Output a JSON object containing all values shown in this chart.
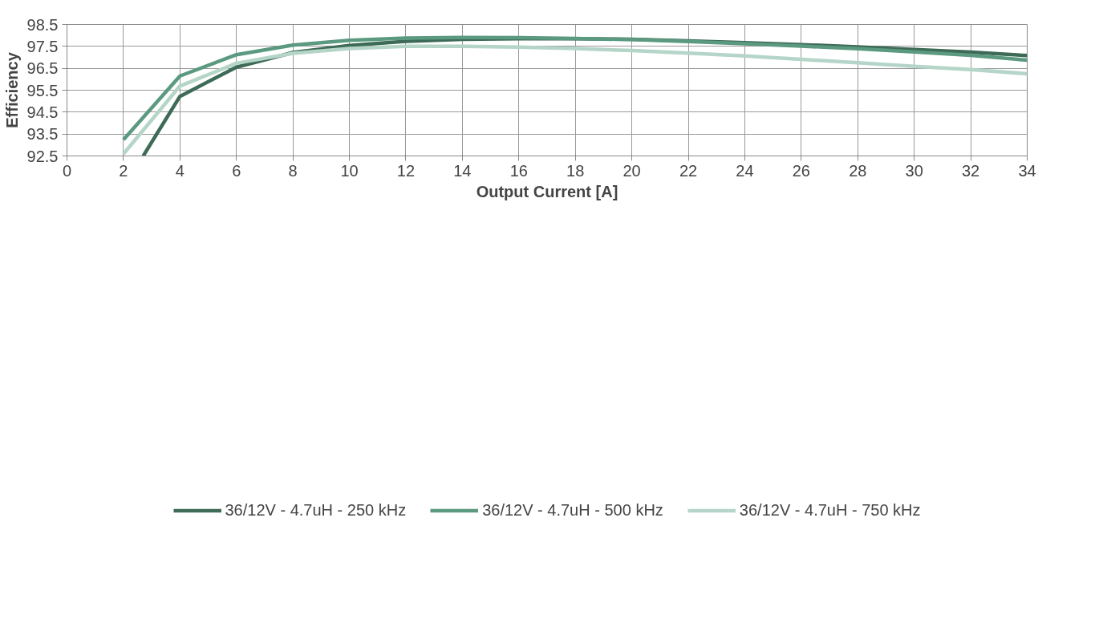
{
  "chart_data": {
    "type": "line",
    "xlabel": "Output Current [A]",
    "ylabel": "Efficiency",
    "xlim": [
      0,
      34
    ],
    "xticks": [
      0,
      2,
      4,
      6,
      8,
      10,
      12,
      14,
      16,
      18,
      20,
      22,
      24,
      26,
      28,
      30,
      32,
      34
    ],
    "ylim": [
      92.5,
      98.5
    ],
    "yticks": [
      92.5,
      93.5,
      94.5,
      95.5,
      96.5,
      97.5,
      98.5
    ],
    "grid": true,
    "legend": "bottom",
    "marker": "none",
    "line_style": "solid",
    "series": [
      {
        "name": "36/12V - 4.7uH - 250 kHz",
        "color": "#3e6b58",
        "x": [
          2.7,
          4,
          6,
          8,
          10,
          12,
          14,
          16,
          18,
          20,
          22,
          24,
          26,
          28,
          30,
          32,
          34
        ],
        "values": [
          92.5,
          95.22,
          96.55,
          97.22,
          97.54,
          97.73,
          97.82,
          97.85,
          97.85,
          97.82,
          97.75,
          97.67,
          97.58,
          97.48,
          97.36,
          97.24,
          97.08
        ]
      },
      {
        "name": "36/12V - 4.7uH - 500 kHz",
        "color": "#5b9a80",
        "x": [
          2,
          4,
          6,
          8,
          10,
          12,
          14,
          16,
          18,
          20,
          22,
          24,
          26,
          28,
          30,
          32,
          34
        ],
        "values": [
          93.24,
          96.15,
          97.12,
          97.56,
          97.78,
          97.88,
          97.91,
          97.9,
          97.86,
          97.81,
          97.72,
          97.62,
          97.51,
          97.39,
          97.25,
          97.09,
          96.87
        ]
      },
      {
        "name": "36/12V - 4.7uH - 750 kHz",
        "color": "#b4d5c8",
        "x": [
          2,
          4,
          6,
          8,
          10,
          12,
          14,
          16,
          18,
          20,
          22,
          24,
          26,
          28,
          30,
          32,
          34
        ],
        "values": [
          92.59,
          95.69,
          96.73,
          97.18,
          97.4,
          97.5,
          97.5,
          97.47,
          97.4,
          97.31,
          97.19,
          97.06,
          96.91,
          96.75,
          96.59,
          96.44,
          96.25
        ]
      }
    ]
  }
}
